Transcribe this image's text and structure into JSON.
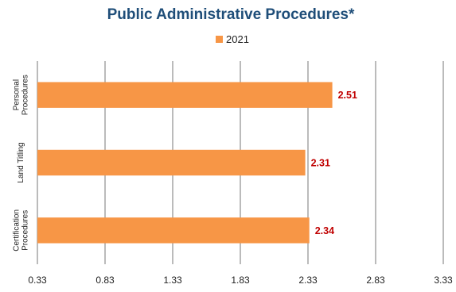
{
  "chart_data": {
    "type": "bar",
    "orientation": "horizontal",
    "title": "Public Administrative Procedures*",
    "xlabel": "",
    "ylabel": "",
    "categories": [
      [
        "Personal",
        "Procedures"
      ],
      [
        "Land Titling"
      ],
      [
        "Certification",
        "Procedures"
      ]
    ],
    "series": [
      {
        "name": "2021",
        "values": [
          2.51,
          2.31,
          2.34
        ],
        "color": "#f79646"
      }
    ],
    "data_labels": [
      "2.51",
      "2.31",
      "2.34"
    ],
    "xlim": [
      0.33,
      3.33
    ],
    "xticks": [
      0.33,
      0.83,
      1.33,
      1.83,
      2.33,
      2.83,
      3.33
    ],
    "xtick_labels": [
      "0.33",
      "0.83",
      "1.33",
      "1.83",
      "2.33",
      "2.83",
      "3.33"
    ],
    "grid": "vertical",
    "legend_position": "top-center",
    "colors": {
      "title": "#1f4e79",
      "data_label": "#c00000",
      "bar": "#f79646"
    }
  }
}
